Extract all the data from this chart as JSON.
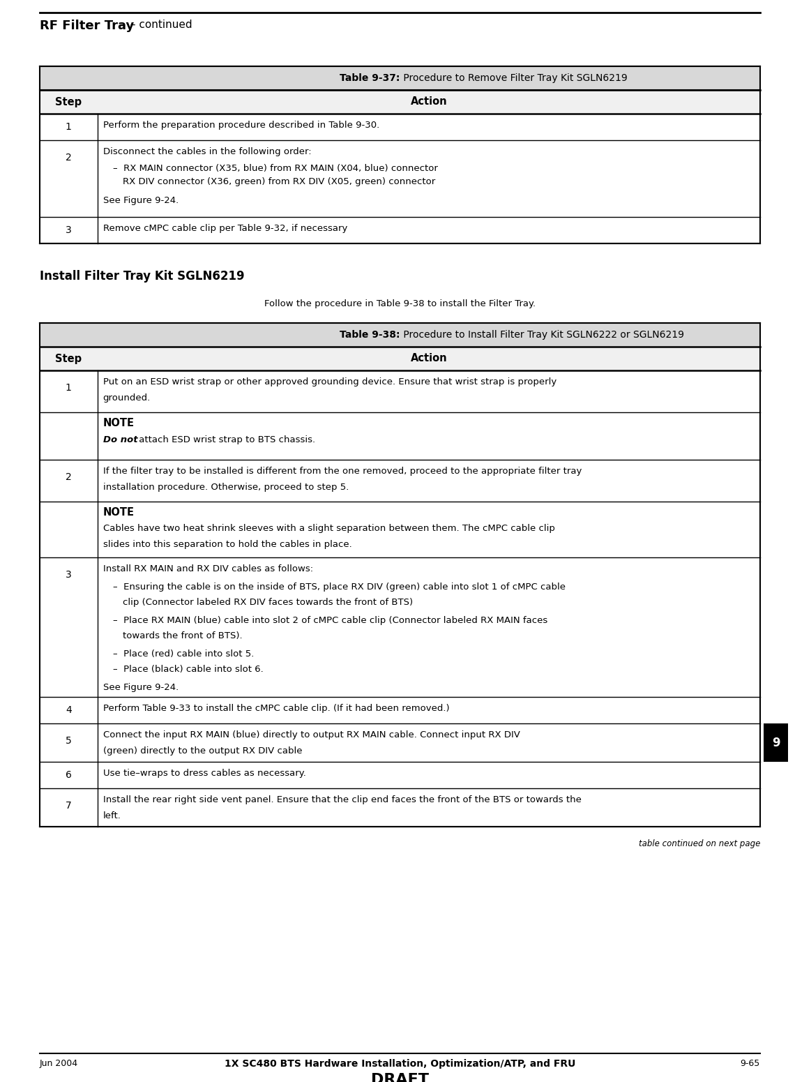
{
  "page_width": 11.4,
  "page_height": 15.51,
  "bg_color": "#ffffff",
  "header_title": "RF Filter Tray",
  "header_subtitle": " – continued",
  "section_heading": "Install Filter Tray Kit SGLN6219",
  "section_intro": "Follow the procedure in Table 9-38 to install the Filter Tray.",
  "footer_left": "Jun 2004",
  "footer_center": "1X SC480 BTS Hardware Installation, Optimization/ATP, and FRU",
  "footer_right": "9-65",
  "footer_draft": "DRAFT",
  "tab1_title_bold": "Table 9-37:",
  "tab1_title_rest": " Procedure to Remove Filter Tray Kit SGLN6219",
  "tab1_col1_header": "Step",
  "tab1_col2_header": "Action",
  "tab2_title_bold": "Table 9-38:",
  "tab2_title_rest": " Procedure to Install Filter Tray Kit SGLN6222 or SGLN6219",
  "tab2_col1_header": "Step",
  "tab2_col2_header": "Action",
  "table_continued": "table continued on next page",
  "side_tab_text": "9"
}
